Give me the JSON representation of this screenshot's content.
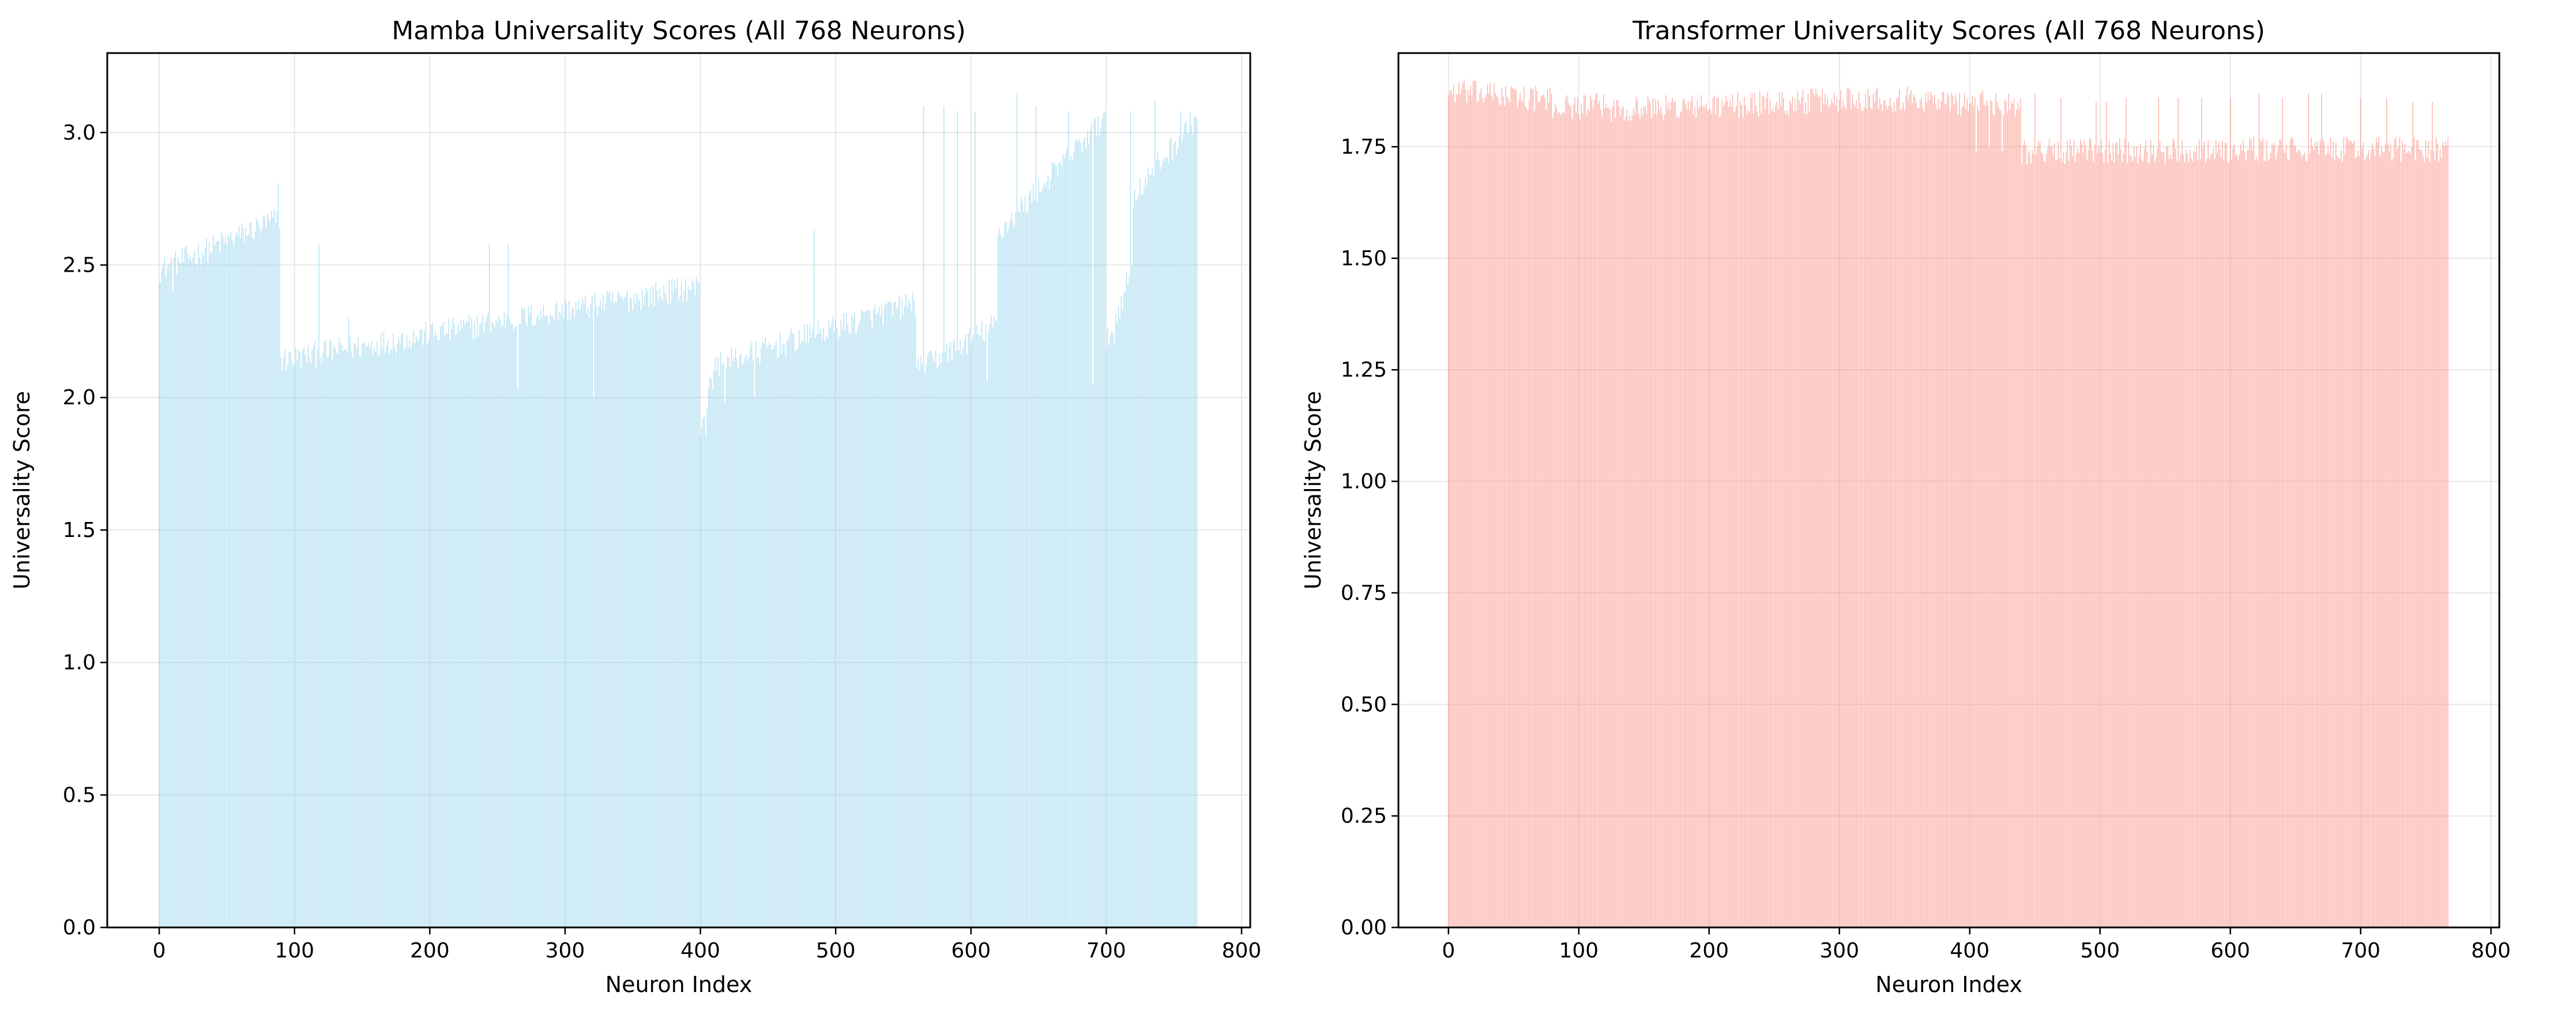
{
  "chart_data": [
    {
      "type": "bar",
      "title": "Mamba Universality Scores (All 768 Neurons)",
      "xlabel": "Neuron Index",
      "ylabel": "Universality Score",
      "xlim": [
        -38.4,
        806.4
      ],
      "ylim": [
        0,
        3.3
      ],
      "xticks": [
        "0",
        "100",
        "200",
        "300",
        "400",
        "500",
        "600",
        "700",
        "800"
      ],
      "yticks": [
        "0.0",
        "0.5",
        "1.0",
        "1.5",
        "2.0",
        "2.5",
        "3.0"
      ],
      "grid": true,
      "color": "#87ceeb",
      "bar_count": 768,
      "segments": [
        {
          "x": [
            0,
            90
          ],
          "y": [
            2.48,
            2.68
          ],
          "note_trend": "rising"
        },
        {
          "x": [
            90,
            400
          ],
          "y": [
            2.14,
            2.42
          ]
        },
        {
          "x": [
            400,
            410
          ],
          "y": [
            1.88,
            2.1
          ]
        },
        {
          "x": [
            410,
            560
          ],
          "y": [
            2.12,
            2.36
          ]
        },
        {
          "x": [
            560,
            620
          ],
          "y": [
            2.1,
            2.28
          ]
        },
        {
          "x": [
            620,
            700
          ],
          "y": [
            2.62,
            3.06
          ]
        },
        {
          "x": [
            700,
            720
          ],
          "y": [
            2.2,
            2.5
          ]
        },
        {
          "x": [
            720,
            767
          ],
          "y": [
            2.76,
            3.06
          ]
        }
      ],
      "spikes": [
        [
          88,
          2.81
        ],
        [
          118,
          2.58
        ],
        [
          244,
          2.58
        ],
        [
          258,
          2.58
        ],
        [
          484,
          2.63
        ],
        [
          565,
          3.1
        ],
        [
          580,
          3.1
        ],
        [
          590,
          3.08
        ],
        [
          603,
          3.08
        ],
        [
          634,
          3.15
        ],
        [
          648,
          3.1
        ],
        [
          672,
          3.08
        ],
        [
          694,
          3.06
        ],
        [
          718,
          3.08
        ],
        [
          736,
          3.12
        ],
        [
          755,
          3.08
        ]
      ],
      "dips": [
        [
          10,
          2.4
        ],
        [
          140,
          2.3
        ],
        [
          265,
          2.03
        ],
        [
          321,
          2.0
        ],
        [
          404,
          1.86
        ],
        [
          418,
          1.98
        ],
        [
          440,
          2.0
        ],
        [
          612,
          2.06
        ],
        [
          690,
          2.05
        ],
        [
          706,
          2.2
        ]
      ]
    },
    {
      "type": "bar",
      "title": "Transformer Universality Scores (All 768 Neurons)",
      "xlabel": "Neuron Index",
      "ylabel": "Universality Score",
      "xlim": [
        -38.4,
        806.4
      ],
      "ylim": [
        0,
        1.96
      ],
      "xticks": [
        "0",
        "100",
        "200",
        "300",
        "400",
        "500",
        "600",
        "700",
        "800"
      ],
      "yticks": [
        "0.00",
        "0.25",
        "0.50",
        "0.75",
        "1.00",
        "1.25",
        "1.50",
        "1.75"
      ],
      "grid": true,
      "color": "#fa8072",
      "bar_count": 768,
      "segments": [
        {
          "x": [
            0,
            80
          ],
          "y": [
            1.875,
            1.855
          ]
        },
        {
          "x": [
            80,
            120
          ],
          "y": [
            1.84,
            1.84
          ]
        },
        {
          "x": [
            120,
            200
          ],
          "y": [
            1.835,
            1.84
          ]
        },
        {
          "x": [
            200,
            300
          ],
          "y": [
            1.84,
            1.855
          ]
        },
        {
          "x": [
            300,
            380
          ],
          "y": [
            1.86,
            1.855
          ]
        },
        {
          "x": [
            380,
            440
          ],
          "y": [
            1.85,
            1.845
          ]
        },
        {
          "x": [
            440,
            767
          ],
          "y": [
            1.74,
            1.745
          ]
        }
      ],
      "spikes": [
        [
          450,
          1.87
        ],
        [
          470,
          1.86
        ],
        [
          497,
          1.85
        ],
        [
          505,
          1.85
        ],
        [
          520,
          1.86
        ],
        [
          545,
          1.86
        ],
        [
          560,
          1.86
        ],
        [
          578,
          1.86
        ],
        [
          600,
          1.86
        ],
        [
          622,
          1.87
        ],
        [
          640,
          1.86
        ],
        [
          660,
          1.87
        ],
        [
          670,
          1.87
        ],
        [
          700,
          1.86
        ],
        [
          720,
          1.86
        ],
        [
          740,
          1.85
        ],
        [
          755,
          1.85
        ]
      ],
      "dips": [
        [
          405,
          1.74
        ],
        [
          415,
          1.75
        ],
        [
          425,
          1.74
        ]
      ]
    }
  ]
}
